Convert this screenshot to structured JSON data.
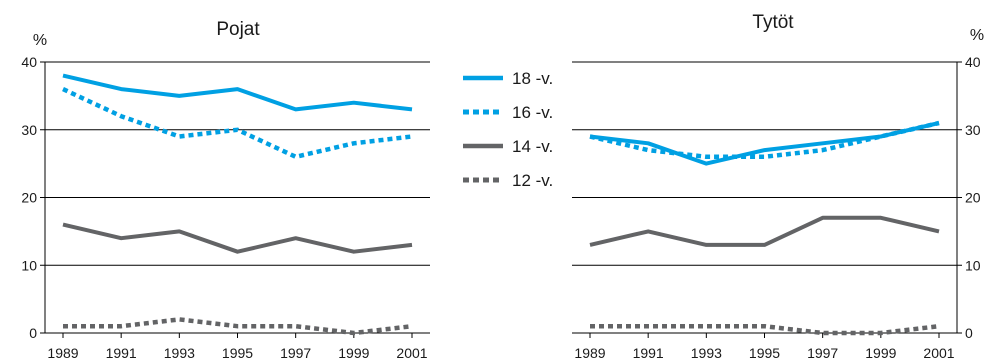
{
  "chart_data": [
    {
      "type": "line",
      "title": "Pojat",
      "ylabel": "%",
      "xlabel": "",
      "ylim": [
        0,
        40
      ],
      "yticks": [
        0,
        10,
        20,
        30,
        40
      ],
      "x": [
        1989,
        1991,
        1993,
        1995,
        1997,
        1999,
        2001
      ],
      "grid": "horizontal",
      "y_axis_side": "left",
      "series": [
        {
          "name": "18 -v.",
          "color": "#00a0e3",
          "style": "solid",
          "values": [
            38,
            36,
            35,
            36,
            33,
            34,
            33
          ]
        },
        {
          "name": "16 -v.",
          "color": "#00a0e3",
          "style": "dotted",
          "values": [
            36,
            32,
            29,
            30,
            26,
            28,
            29
          ]
        },
        {
          "name": "14 -v.",
          "color": "#636466",
          "style": "solid",
          "values": [
            16,
            14,
            15,
            12,
            14,
            12,
            13
          ]
        },
        {
          "name": "12 -v.",
          "color": "#636466",
          "style": "dotted",
          "values": [
            1,
            1,
            2,
            1,
            1,
            0,
            1
          ]
        }
      ]
    },
    {
      "type": "line",
      "title": "Tytöt",
      "ylabel": "%",
      "xlabel": "",
      "ylim": [
        0,
        40
      ],
      "yticks": [
        0,
        10,
        20,
        30,
        40
      ],
      "x": [
        1989,
        1991,
        1993,
        1995,
        1997,
        1999,
        2001
      ],
      "grid": "horizontal",
      "y_axis_side": "right",
      "series": [
        {
          "name": "18 -v.",
          "color": "#00a0e3",
          "style": "solid",
          "values": [
            29,
            28,
            25,
            27,
            28,
            29,
            31
          ]
        },
        {
          "name": "16 -v.",
          "color": "#00a0e3",
          "style": "dotted",
          "values": [
            29,
            27,
            26,
            26,
            27,
            29,
            31
          ]
        },
        {
          "name": "14 -v.",
          "color": "#636466",
          "style": "solid",
          "values": [
            13,
            15,
            13,
            13,
            17,
            17,
            15
          ]
        },
        {
          "name": "12 -v.",
          "color": "#636466",
          "style": "dotted",
          "values": [
            1,
            1,
            1,
            1,
            0,
            0,
            1
          ]
        }
      ]
    }
  ],
  "legend": {
    "placement": "center",
    "items": [
      {
        "label": "18 -v.",
        "color": "#00a0e3",
        "style": "solid"
      },
      {
        "label": "16 -v.",
        "color": "#00a0e3",
        "style": "dotted"
      },
      {
        "label": "14 -v.",
        "color": "#636466",
        "style": "solid"
      },
      {
        "label": "12 -v.",
        "color": "#636466",
        "style": "dotted"
      }
    ]
  }
}
